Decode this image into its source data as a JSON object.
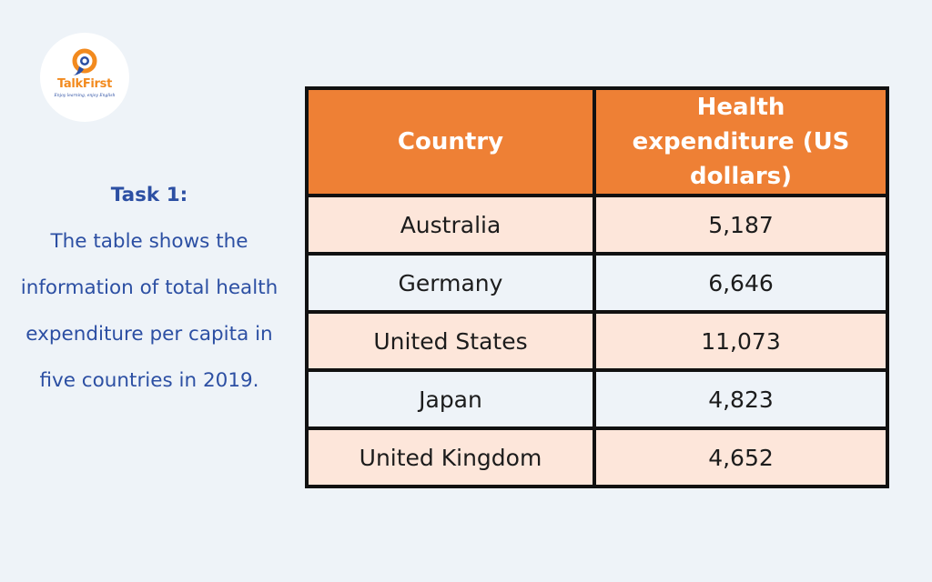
{
  "logo": {
    "name": "TalkFirst",
    "tagline": "Enjoy learning, enjoy English",
    "icon": "speech-bubble-icon",
    "colors": {
      "orange": "#f28a1e",
      "blue": "#2c4fa3"
    }
  },
  "task": {
    "title": "Task 1:",
    "description": "The table shows the information of total health expenditure per capita in five countries in 2019."
  },
  "colors": {
    "header_bg": "#ee8035",
    "row_odd_bg": "#fde6da",
    "row_even_bg": "#eef3f8",
    "text_blue": "#2c4fa3"
  },
  "chart_data": {
    "type": "table",
    "columns": [
      "Country",
      "Health expenditure (US dollars)"
    ],
    "rows": [
      {
        "country": "Australia",
        "value": "5,187"
      },
      {
        "country": "Germany",
        "value": "6,646"
      },
      {
        "country": "United States",
        "value": "11,073"
      },
      {
        "country": "Japan",
        "value": "4,823"
      },
      {
        "country": "United Kingdom",
        "value": "4,652"
      }
    ]
  }
}
